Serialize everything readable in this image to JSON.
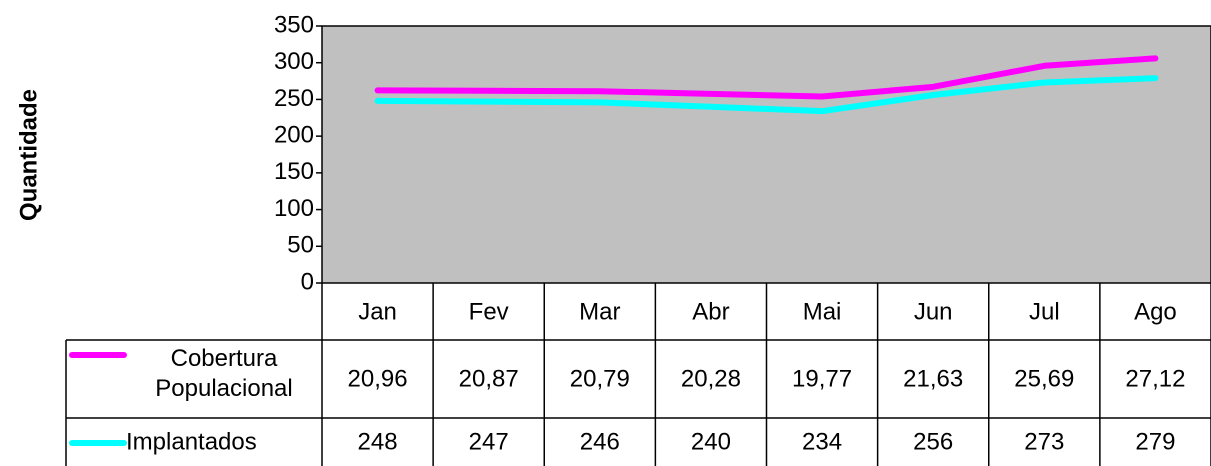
{
  "chart_data": {
    "type": "line",
    "y_label": "Quantidade",
    "categories": [
      "Jan",
      "Fev",
      "Mar",
      "Abr",
      "Mai",
      "Jun",
      "Jul",
      "Ago"
    ],
    "series": [
      {
        "name": "Cobertura Populacional",
        "color": "#ff00ff",
        "axis": "y2",
        "values": [
          20.96,
          20.87,
          20.79,
          20.28,
          19.77,
          21.63,
          25.69,
          27.12
        ],
        "value_labels": [
          "20,96",
          "20,87",
          "20,79",
          "20,28",
          "19,77",
          "21,63",
          "25,69",
          "27,12"
        ]
      },
      {
        "name": "Implantados",
        "color": "#00ffff",
        "values": [
          248,
          247,
          246,
          240,
          234,
          256,
          273,
          279
        ]
      }
    ],
    "ylim": [
      0,
      350
    ],
    "yticks": [
      0,
      50,
      100,
      150,
      200,
      250,
      300,
      350
    ],
    "y2lim": [
      -16.15,
      33.35
    ],
    "plot_background": "#c0c0c0",
    "data_table": true
  }
}
